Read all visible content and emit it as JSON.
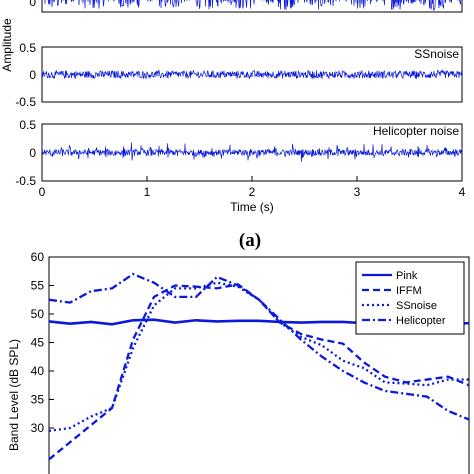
{
  "chart_data": [
    {
      "type": "line",
      "panel_label": "(a)",
      "xlabel": "Time (s)",
      "ylabel": "Amplitude",
      "xlim": [
        0,
        4
      ],
      "x_ticks": [
        "0",
        "1",
        "2",
        "3",
        "4"
      ],
      "subplots": [
        {
          "label": "",
          "ylim": [
            -0.5,
            0.5
          ],
          "y_ticks": [
            "0"
          ],
          "envelope": 0.45,
          "style": "bursty"
        },
        {
          "label": "SSnoise",
          "ylim": [
            -0.5,
            0.5
          ],
          "y_ticks": [
            "0.5",
            "0",
            "-0.5"
          ],
          "envelope": 0.08,
          "style": "steady"
        },
        {
          "label": "Helicopter noise",
          "ylim": [
            -0.5,
            0.5
          ],
          "y_ticks": [
            "0.5",
            "0",
            "-0.5"
          ],
          "envelope": 0.2,
          "style": "pulsed"
        }
      ]
    },
    {
      "type": "line",
      "ylabel": "Band Level (dB SPL)",
      "ylim": [
        25,
        60
      ],
      "y_ticks": [
        "60",
        "55",
        "50",
        "45",
        "40",
        "35",
        "30"
      ],
      "legend_position": "top-right",
      "x_index": [
        0,
        1,
        2,
        3,
        4,
        5,
        6,
        7,
        8,
        9,
        10,
        11,
        12,
        13,
        14,
        15,
        16,
        17,
        18,
        19,
        20
      ],
      "series": [
        {
          "name": "Pink",
          "dash": "solid",
          "values": [
            48.7,
            48.3,
            48.6,
            48.2,
            48.9,
            49.0,
            48.5,
            48.9,
            48.7,
            48.8,
            48.8,
            48.6,
            48.5,
            48.6,
            48.6,
            48.4,
            48.6,
            48.4,
            48.7,
            48.2,
            48.4
          ]
        },
        {
          "name": "IFFM",
          "dash": "dash",
          "values": [
            24.5,
            27.5,
            30.5,
            33.5,
            45.5,
            53.0,
            55.0,
            54.8,
            54.5,
            55.2,
            52.5,
            48.5,
            46.5,
            45.5,
            44.8,
            41.5,
            39.0,
            38.0,
            38.5,
            39.0,
            37.5
          ]
        },
        {
          "name": "SSnoise",
          "dash": "dot",
          "values": [
            29.5,
            30.0,
            32.0,
            33.5,
            44.0,
            51.5,
            54.5,
            54.5,
            55.5,
            54.8,
            52.5,
            48.5,
            46.0,
            44.5,
            41.8,
            40.5,
            38.0,
            37.8,
            37.5,
            38.5,
            38.5
          ]
        },
        {
          "name": "Helicopter",
          "dash": "dashdot",
          "values": [
            52.5,
            52.0,
            54.0,
            54.5,
            57.0,
            55.5,
            53.0,
            53.0,
            56.5,
            55.0,
            52.5,
            49.0,
            45.5,
            42.5,
            40.0,
            38.0,
            36.5,
            36.0,
            35.5,
            33.0,
            31.5
          ]
        }
      ]
    }
  ],
  "colors": {
    "line": "#0b1ad9",
    "axis": "#000000",
    "background": "#ffffff"
  }
}
